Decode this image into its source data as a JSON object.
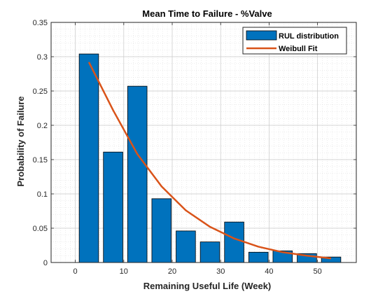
{
  "chart_data": {
    "type": "bar",
    "title": "Mean Time to Failure - %Valve",
    "xlabel": "Remaining Useful Life (Week)",
    "ylabel": "Probability of Failure",
    "xlim": [
      -5,
      58
    ],
    "ylim": [
      0,
      0.35
    ],
    "xticks": [
      0,
      10,
      20,
      30,
      40,
      50
    ],
    "yticks": [
      0,
      0.05,
      0.1,
      0.15,
      0.2,
      0.25,
      0.3,
      0.35
    ],
    "ytick_labels": [
      "0",
      "0.05",
      "0.1",
      "0.15",
      "0.2",
      "0.25",
      "0.3",
      "0.35"
    ],
    "grid": true,
    "minor_grid": true,
    "legend_position": "top-right",
    "series": [
      {
        "name": "RUL distribution",
        "type": "bar",
        "color": "#0072BD",
        "x": [
          2.8,
          7.8,
          12.8,
          17.8,
          22.8,
          27.8,
          32.8,
          37.8,
          42.8,
          47.8,
          52.8
        ],
        "values": [
          0.304,
          0.161,
          0.257,
          0.093,
          0.046,
          0.03,
          0.059,
          0.015,
          0.017,
          0.013,
          0.008
        ]
      },
      {
        "name": "Weibull Fit",
        "type": "line",
        "color": "#D95319",
        "x": [
          2.8,
          7.8,
          12.8,
          17.8,
          22.8,
          27.8,
          32.8,
          37.8,
          42.8,
          47.8,
          52.8
        ],
        "values": [
          0.292,
          0.222,
          0.158,
          0.111,
          0.076,
          0.052,
          0.035,
          0.023,
          0.015,
          0.01,
          0.006
        ]
      }
    ]
  }
}
